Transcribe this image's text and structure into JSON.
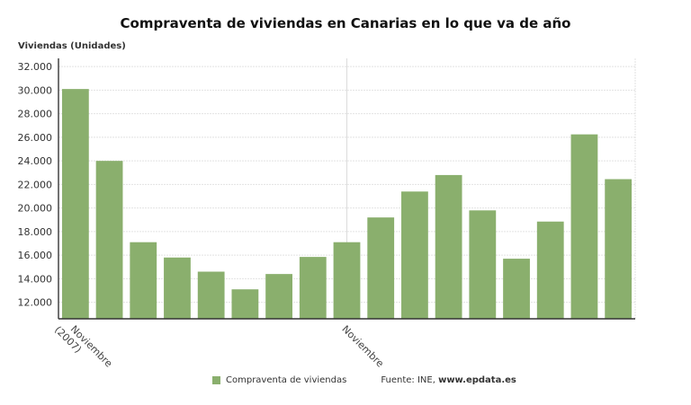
{
  "chart_data": {
    "type": "bar",
    "title": "Compraventa de viviendas en Canarias en lo que va de año",
    "ylabel": "Viviendas (Unidades)",
    "xlabel": "",
    "ylim": [
      10600,
      32700
    ],
    "yticks": [
      12000,
      14000,
      16000,
      18000,
      20000,
      22000,
      24000,
      26000,
      28000,
      30000,
      32000
    ],
    "ytick_labels": [
      "12.000",
      "14.000",
      "16.000",
      "18.000",
      "20.000",
      "22.000",
      "24.000",
      "26.000",
      "28.000",
      "30.000",
      "32.000"
    ],
    "categories": [
      "Noviembre (2007)",
      "",
      "",
      "",
      "",
      "",
      "",
      "",
      "Noviembre",
      "",
      "",
      "",
      "",
      "",
      "",
      "",
      ""
    ],
    "series": [
      {
        "name": "Compraventa de viviendas",
        "color": "#8aaf6d",
        "values": [
          30100,
          24000,
          17100,
          15800,
          14600,
          13100,
          14400,
          15850,
          17100,
          19200,
          21400,
          22800,
          19800,
          15700,
          18850,
          26250,
          22450
        ]
      }
    ],
    "grid": true,
    "legend": "bottom",
    "source": {
      "prefix": "Fuente: INE, ",
      "site": "www.epdata.es"
    }
  }
}
